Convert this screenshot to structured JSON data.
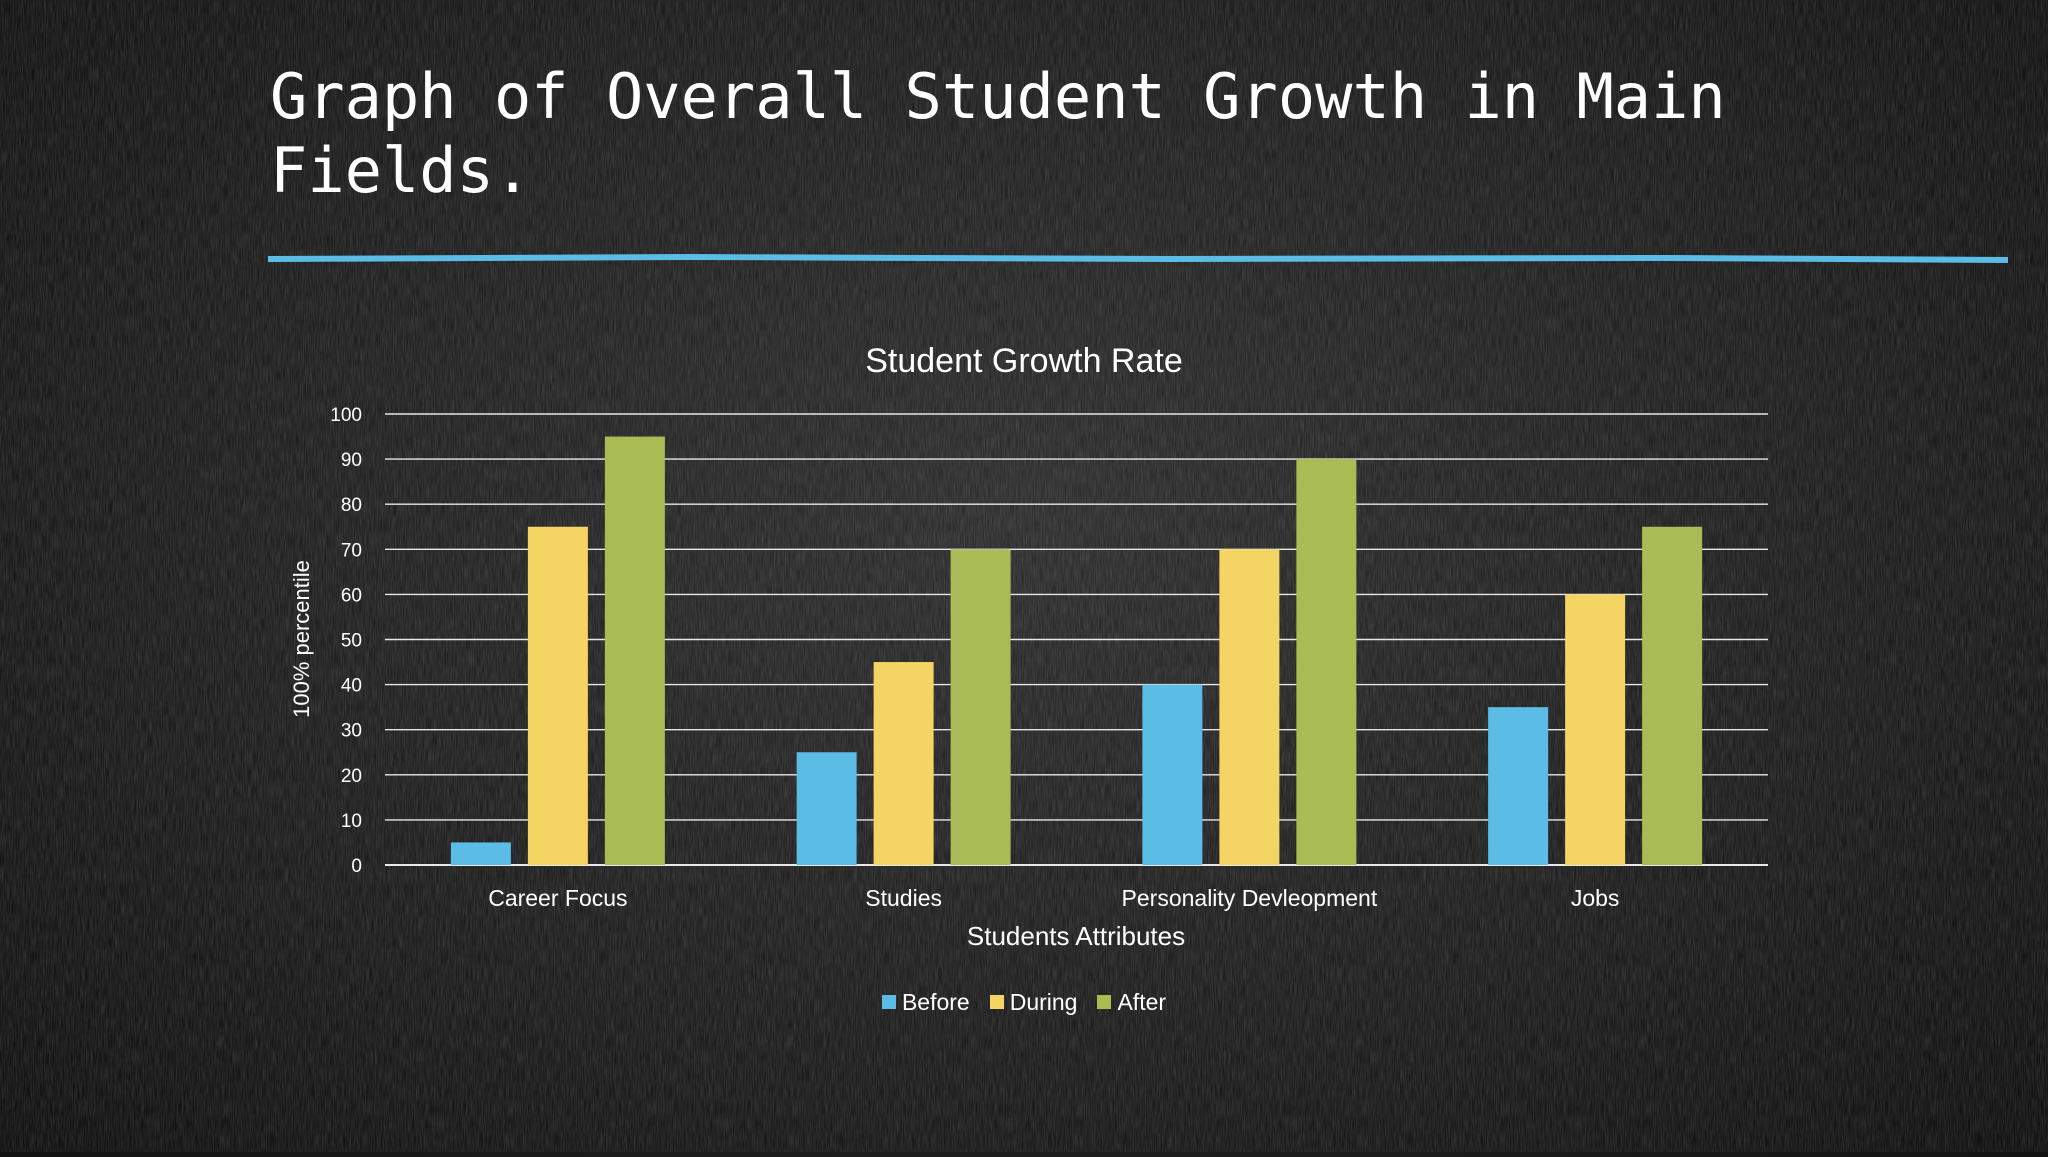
{
  "slide": {
    "title": "Graph of Overall Student Growth in Main Fields.",
    "accent_color": "#5bbde6"
  },
  "chart_data": {
    "type": "bar",
    "title": "Student Growth Rate",
    "xlabel": "Students Attributes",
    "ylabel": "100% percentile",
    "categories": [
      "Career Focus",
      "Studies",
      "Personality Devleopment",
      "Jobs"
    ],
    "series": [
      {
        "name": "Before",
        "color": "#5bbde6",
        "values": [
          5,
          25,
          40,
          35
        ]
      },
      {
        "name": "During",
        "color": "#f4d462",
        "values": [
          75,
          45,
          70,
          60
        ]
      },
      {
        "name": "After",
        "color": "#a8bb55",
        "values": [
          95,
          70,
          90,
          75
        ]
      }
    ],
    "ylim": [
      0,
      100
    ],
    "yticks": [
      0,
      10,
      20,
      30,
      40,
      50,
      60,
      70,
      80,
      90,
      100
    ],
    "grid": true,
    "legend_position": "bottom"
  }
}
